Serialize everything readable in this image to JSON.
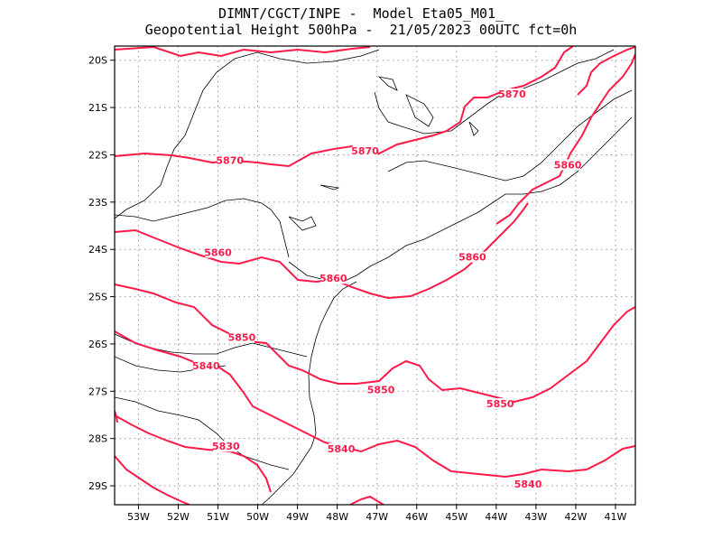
{
  "header": {
    "line1": "DIMNT/CGCT/INPE -  Model Eta05_M01_",
    "line2": "Geopotential Height 500hPa -  21/05/2023 00UTC fct=0h"
  },
  "map": {
    "lon_range": [
      -53.6,
      -40.5
    ],
    "lat_range": [
      -29.4,
      -19.7
    ],
    "lat_ticks": [
      {
        "value": -20,
        "label": "20S"
      },
      {
        "value": -21,
        "label": "21S"
      },
      {
        "value": -22,
        "label": "22S"
      },
      {
        "value": -23,
        "label": "23S"
      },
      {
        "value": -24,
        "label": "24S"
      },
      {
        "value": -25,
        "label": "25S"
      },
      {
        "value": -26,
        "label": "26S"
      },
      {
        "value": -27,
        "label": "27S"
      },
      {
        "value": -28,
        "label": "28S"
      },
      {
        "value": -29,
        "label": "29S"
      }
    ],
    "lon_ticks": [
      {
        "value": -53,
        "label": "53W"
      },
      {
        "value": -52,
        "label": "52W"
      },
      {
        "value": -51,
        "label": "51W"
      },
      {
        "value": -50,
        "label": "50W"
      },
      {
        "value": -49,
        "label": "49W"
      },
      {
        "value": -48,
        "label": "48W"
      },
      {
        "value": -47,
        "label": "47W"
      },
      {
        "value": -46,
        "label": "46W"
      },
      {
        "value": -45,
        "label": "45W"
      },
      {
        "value": -44,
        "label": "44W"
      },
      {
        "value": -43,
        "label": "43W"
      },
      {
        "value": -42,
        "label": "42W"
      },
      {
        "value": -41,
        "label": "41W"
      }
    ],
    "grid": "dotted",
    "contour_color": "#ff1a4a",
    "boundary_color": "#000000",
    "contour_labels": [
      {
        "text": "5870",
        "lon": -43.6,
        "lat": -20.75
      },
      {
        "text": "5870",
        "lon": -47.3,
        "lat": -21.95
      },
      {
        "text": "5870",
        "lon": -50.7,
        "lat": -22.15
      },
      {
        "text": "5860",
        "lon": -42.2,
        "lat": -22.25
      },
      {
        "text": "5860",
        "lon": -44.6,
        "lat": -24.2
      },
      {
        "text": "5860",
        "lon": -48.1,
        "lat": -24.65
      },
      {
        "text": "5860",
        "lon": -51.0,
        "lat": -24.1
      },
      {
        "text": "5850",
        "lon": -50.4,
        "lat": -25.9
      },
      {
        "text": "5850",
        "lon": -46.9,
        "lat": -27.0
      },
      {
        "text": "5850",
        "lon": -43.9,
        "lat": -27.3
      },
      {
        "text": "5840",
        "lon": -51.3,
        "lat": -26.5
      },
      {
        "text": "5840",
        "lon": -47.9,
        "lat": -28.25
      },
      {
        "text": "5840",
        "lon": -43.2,
        "lat": -29.0
      },
      {
        "text": "5830",
        "lon": -50.8,
        "lat": -28.2
      }
    ]
  }
}
